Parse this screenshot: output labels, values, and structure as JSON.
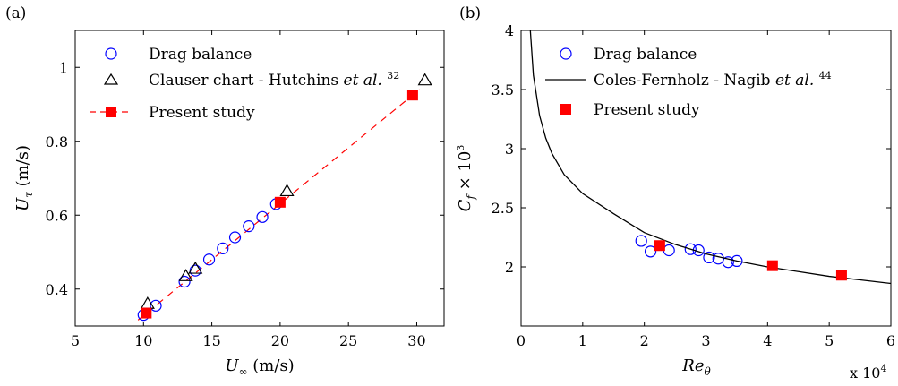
{
  "chart_data": [
    {
      "panel_label": "(a)",
      "type": "scatter",
      "xlabel": "U∞ (m/s)",
      "ylabel": "Uτ (m/s)",
      "xlim": [
        5,
        32
      ],
      "ylim": [
        0.3,
        1.1
      ],
      "xticks": [
        5,
        10,
        15,
        20,
        25,
        30
      ],
      "yticks": [
        0.4,
        0.6,
        0.8,
        1
      ],
      "x_tick_labels": [
        "5",
        "10",
        "15",
        "20",
        "25",
        "30"
      ],
      "y_tick_labels": [
        "0.4",
        "0.6",
        "0.8",
        "1"
      ],
      "legend_position": "top-left",
      "series": [
        {
          "name": "Drag balance",
          "marker": "circle",
          "color": "#0000ff",
          "x": [
            10.0,
            10.9,
            13.0,
            13.8,
            14.8,
            15.8,
            16.7,
            17.7,
            18.7,
            19.7
          ],
          "y": [
            0.33,
            0.355,
            0.42,
            0.45,
            0.48,
            0.51,
            0.54,
            0.57,
            0.595,
            0.63
          ]
        },
        {
          "name": "Clauser chart - Hutchins et al. 32",
          "marker": "triangle",
          "color": "#000000",
          "x": [
            10.3,
            13.1,
            13.8,
            20.5,
            30.6
          ],
          "y": [
            0.36,
            0.435,
            0.455,
            0.665,
            0.965
          ]
        },
        {
          "name": "Present study",
          "marker": "square",
          "color": "#ff0000",
          "x": [
            10.2,
            20.0,
            29.7
          ],
          "y": [
            0.335,
            0.635,
            0.925
          ]
        }
      ],
      "fit_line": {
        "x": [
          9.6,
          30.2
        ],
        "y": [
          0.316,
          0.94
        ],
        "color": "#ff0000",
        "dash": "dashed"
      }
    },
    {
      "panel_label": "(b)",
      "type": "scatter",
      "xlabel": "Reθ",
      "ylabel": "Cf × 10³",
      "x_multiplier_label": "x 10⁴",
      "xlim": [
        0,
        6
      ],
      "ylim": [
        1.5,
        4
      ],
      "xticks": [
        0,
        1,
        2,
        3,
        4,
        5,
        6
      ],
      "yticks": [
        2,
        2.5,
        3,
        3.5,
        4
      ],
      "x_tick_labels": [
        "0",
        "1",
        "2",
        "3",
        "4",
        "5",
        "6"
      ],
      "y_tick_labels": [
        "2",
        "2.5",
        "3",
        "3.5",
        "4"
      ],
      "legend_position": "top-center",
      "series": [
        {
          "name": "Drag balance",
          "marker": "circle",
          "color": "#0000ff",
          "x": [
            1.95,
            2.1,
            2.4,
            2.75,
            2.88,
            3.05,
            3.2,
            3.36,
            3.5
          ],
          "y": [
            2.22,
            2.13,
            2.14,
            2.15,
            2.14,
            2.08,
            2.07,
            2.04,
            2.05
          ]
        },
        {
          "name": "Coles-Fernholz - Nagib et al. 44",
          "marker": "line",
          "color": "#000000",
          "x": [
            0.15,
            0.2,
            0.3,
            0.4,
            0.5,
            0.7,
            1.0,
            1.5,
            2.0,
            2.5,
            3.0,
            3.5,
            4.0,
            4.5,
            5.0,
            5.5,
            6.0
          ],
          "y": [
            4.0,
            3.62,
            3.28,
            3.09,
            2.96,
            2.78,
            2.62,
            2.45,
            2.29,
            2.19,
            2.11,
            2.05,
            2.0,
            1.96,
            1.92,
            1.89,
            1.86
          ]
        },
        {
          "name": "Present study",
          "marker": "square",
          "color": "#ff0000",
          "x": [
            2.25,
            4.08,
            5.2
          ],
          "y": [
            2.18,
            2.01,
            1.93
          ]
        }
      ]
    }
  ]
}
